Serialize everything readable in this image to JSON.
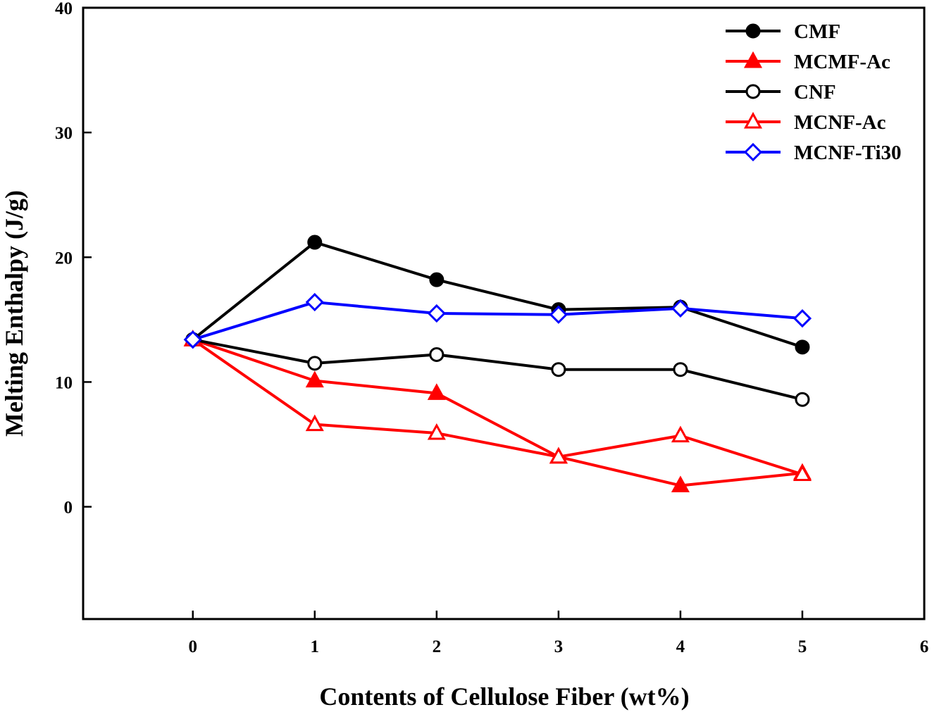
{
  "chart_data": {
    "type": "line",
    "title": "",
    "xlabel": "Contents of Cellulose Fiber (wt%)",
    "ylabel": "Melting Enthalpy (J/g)",
    "xlim": [
      -0.9,
      6
    ],
    "ylim": [
      -9,
      40
    ],
    "xticks": [
      "0",
      "1",
      "2",
      "3",
      "4",
      "5",
      "6"
    ],
    "yticks": [
      "0",
      "10",
      "20",
      "30",
      "40"
    ],
    "grid": false,
    "legend_position": "top-right",
    "x": [
      0,
      1,
      2,
      3,
      4,
      5
    ],
    "series": [
      {
        "name": "CMF",
        "color": "#000000",
        "marker": "filled-circle",
        "values": [
          13.4,
          21.2,
          18.2,
          15.8,
          16.0,
          12.8
        ]
      },
      {
        "name": "MCMF-Ac",
        "color": "#ff0000",
        "marker": "filled-triangle",
        "values": [
          13.4,
          10.1,
          9.1,
          4.0,
          1.7,
          2.7
        ]
      },
      {
        "name": "CNF",
        "color": "#000000",
        "marker": "open-circle",
        "values": [
          13.4,
          11.5,
          12.2,
          11.0,
          11.0,
          8.6
        ]
      },
      {
        "name": "MCNF-Ac",
        "color": "#ff0000",
        "marker": "open-triangle",
        "values": [
          13.4,
          6.6,
          5.9,
          4.0,
          5.7,
          2.6
        ]
      },
      {
        "name": "MCNF-Ti30",
        "color": "#0000ff",
        "marker": "open-diamond",
        "values": [
          13.4,
          16.4,
          15.5,
          15.4,
          15.9,
          15.1
        ]
      }
    ]
  }
}
